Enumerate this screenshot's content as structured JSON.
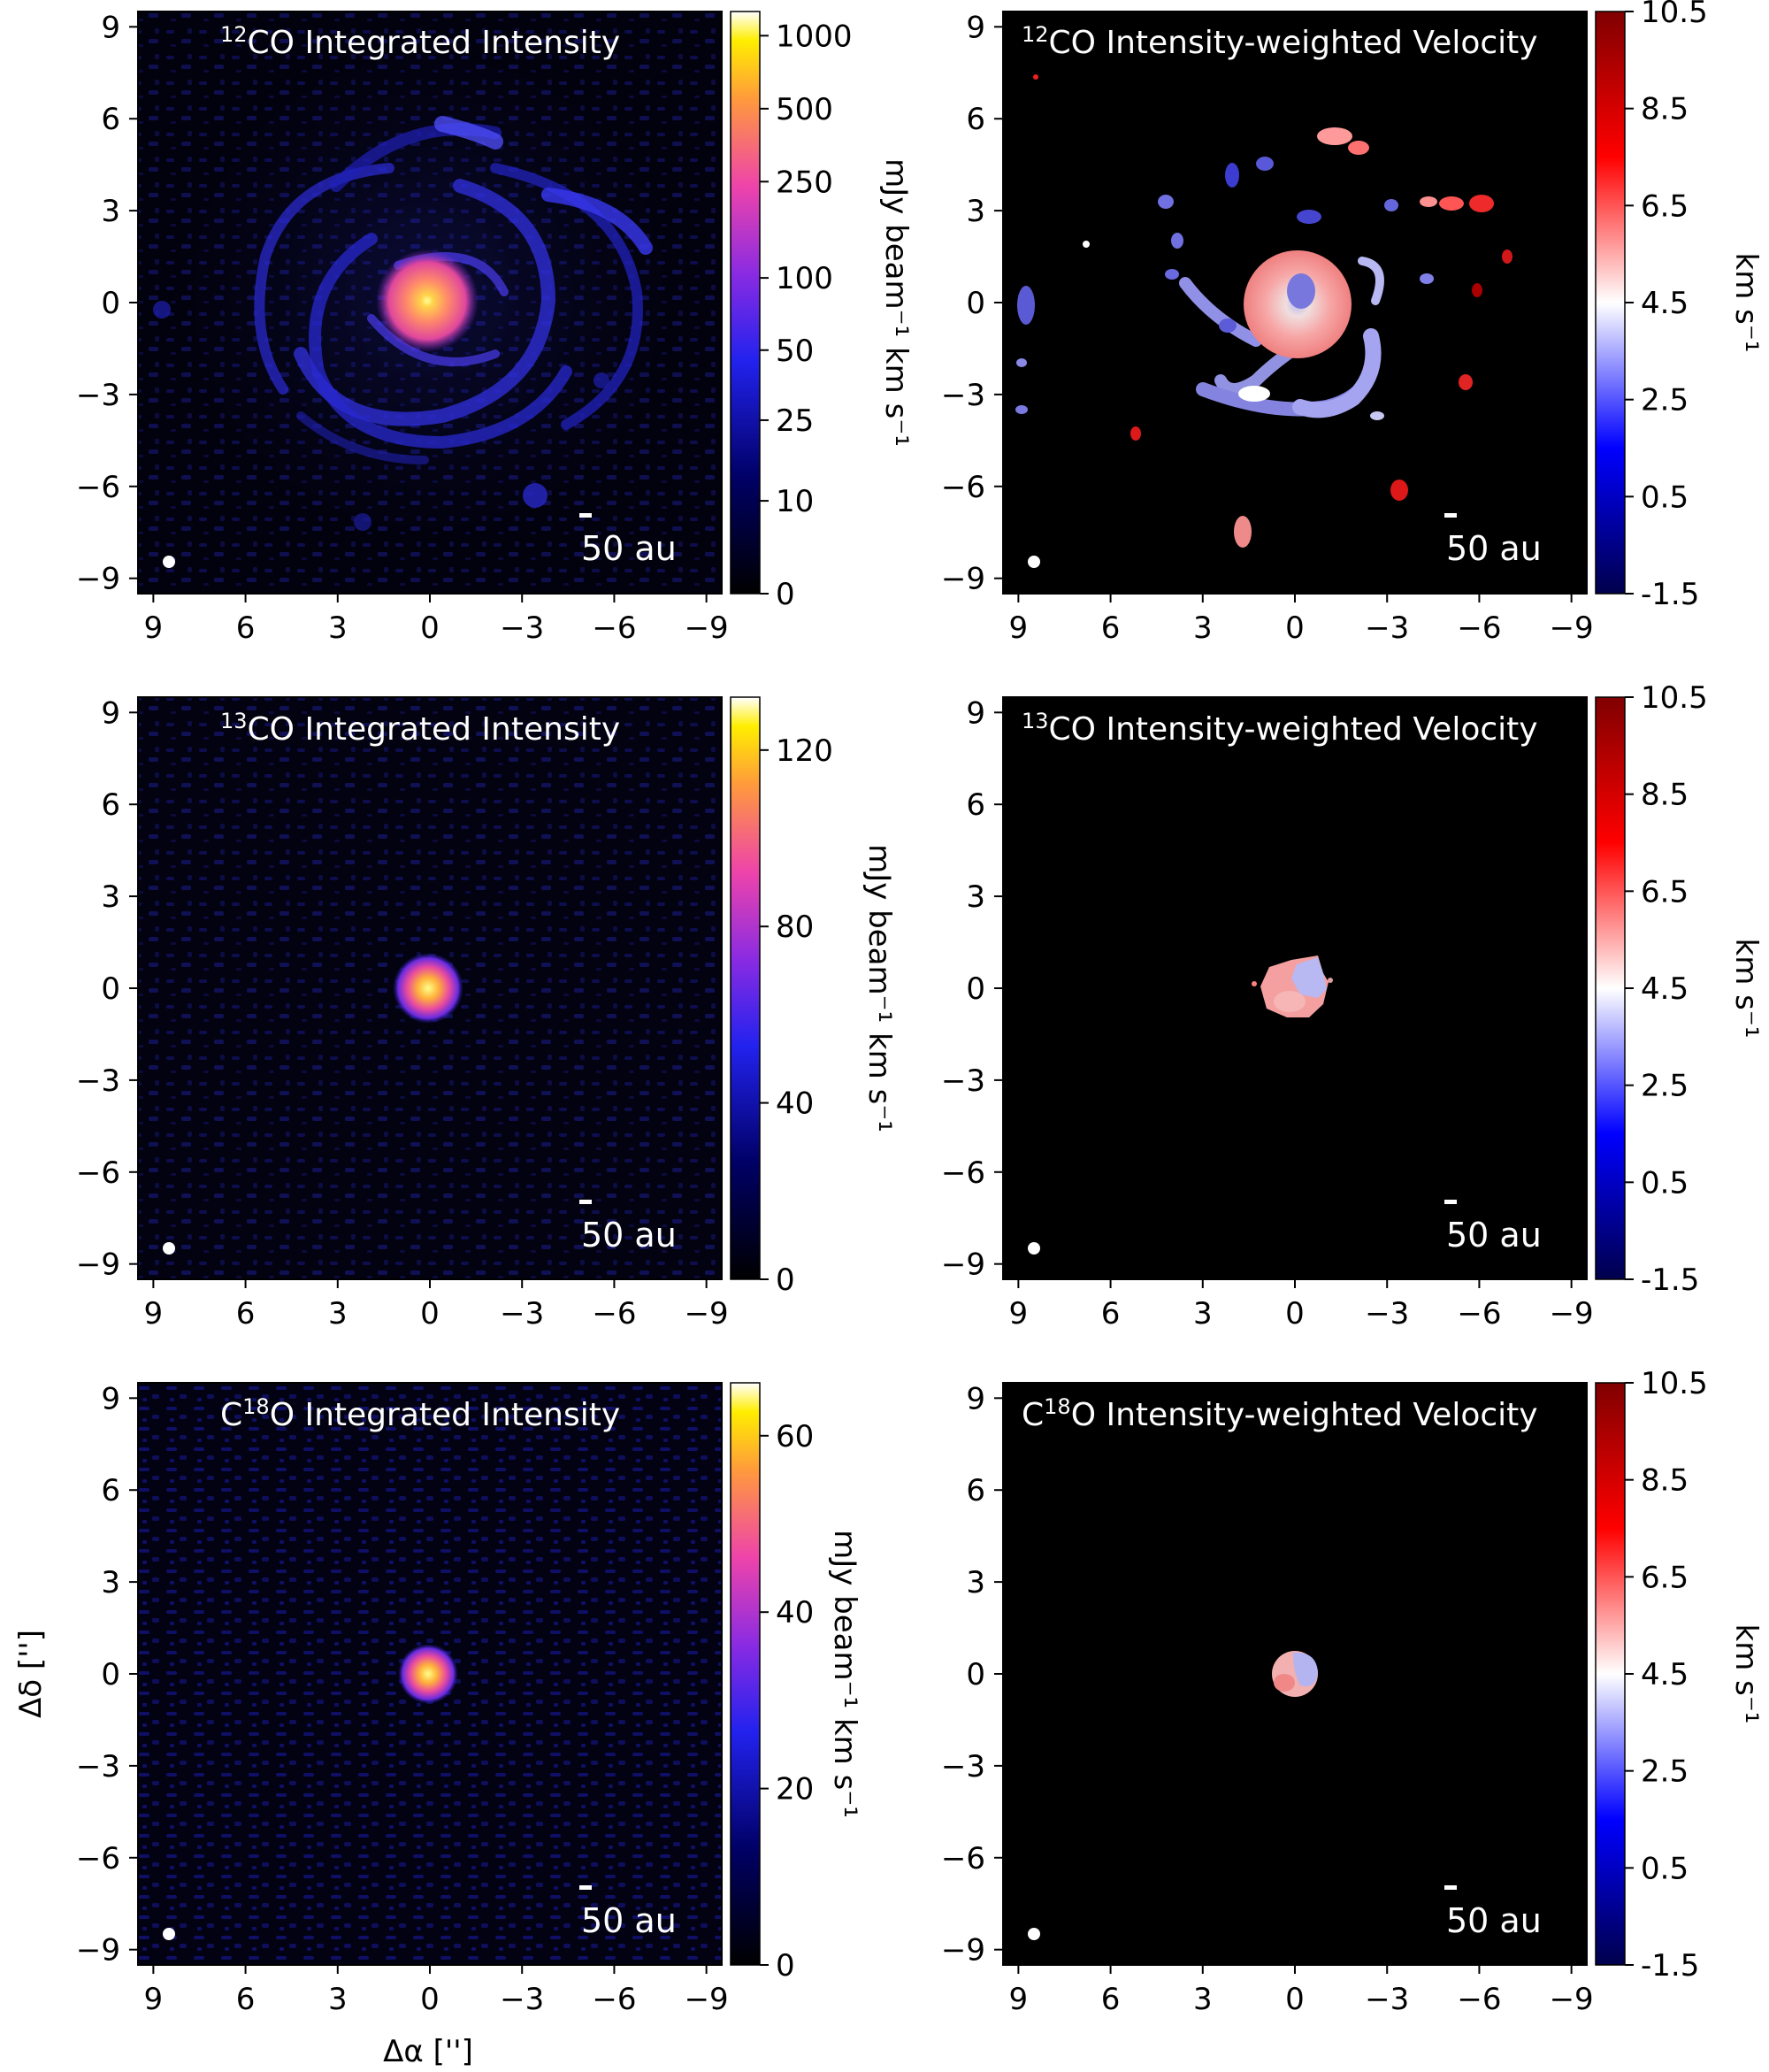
{
  "figure": {
    "x_axis_label": "Δα ['']",
    "y_axis_label": "Δδ ['']",
    "scale_bar_label": "50 au"
  },
  "chart_data": [
    {
      "type": "heatmap",
      "panel": "12co-intensity",
      "title": {
        "sup": "12",
        "rest": "CO Integrated Intensity"
      },
      "colormap": "gnuplot2",
      "x_ticks": [
        "9",
        "6",
        "3",
        "0",
        "−3",
        "−6",
        "−9"
      ],
      "y_ticks": [
        "9",
        "6",
        "3",
        "0",
        "−3",
        "−6",
        "−9"
      ],
      "x_range": [
        9.5,
        -9.5
      ],
      "y_range": [
        -9.5,
        9.5
      ],
      "colorbar": {
        "label": "mJy beam⁻¹ km s⁻¹",
        "scale": "asinh",
        "range": [
          0,
          1100
        ],
        "ticks": [
          "1000",
          "500",
          "250",
          "100",
          "50",
          "25",
          "10",
          "0"
        ]
      },
      "features": {
        "peak": [
          0,
          0
        ],
        "spiral_arms": 4,
        "core_radius_arcsec": 1.3
      }
    },
    {
      "type": "heatmap",
      "panel": "12co-velocity",
      "title": {
        "sup": "12",
        "rest": "CO Intensity-weighted Velocity"
      },
      "colormap": "seismic",
      "x_ticks": [
        "9",
        "6",
        "3",
        "0",
        "−3",
        "−6",
        "−9"
      ],
      "y_ticks": [
        "9",
        "6",
        "3",
        "0",
        "−3",
        "−6",
        "−9"
      ],
      "x_range": [
        9.5,
        -9.5
      ],
      "y_range": [
        -9.5,
        9.5
      ],
      "colorbar": {
        "label": "km s⁻¹",
        "range": [
          -1.5,
          10.5
        ],
        "ticks": [
          "10.5",
          "8.5",
          "6.5",
          "4.5",
          "2.5",
          "0.5",
          "-1.5"
        ]
      },
      "features": {
        "core_velocity": 6.0,
        "core_center_velocity": 3.2
      }
    },
    {
      "type": "heatmap",
      "panel": "13co-intensity",
      "title": {
        "sup": "13",
        "rest": "CO Integrated Intensity"
      },
      "colormap": "gnuplot2",
      "x_ticks": [
        "9",
        "6",
        "3",
        "0",
        "−3",
        "−6",
        "−9"
      ],
      "y_ticks": [
        "9",
        "6",
        "3",
        "0",
        "−3",
        "−6",
        "−9"
      ],
      "x_range": [
        9.5,
        -9.5
      ],
      "y_range": [
        -9.5,
        9.5
      ],
      "colorbar": {
        "label": "mJy beam⁻¹ km s⁻¹",
        "scale": "linear",
        "range": [
          0,
          132
        ],
        "ticks": [
          "120",
          "80",
          "40",
          "0"
        ]
      },
      "features": {
        "peak": [
          0,
          0
        ],
        "source_radius_arcsec": 0.6
      }
    },
    {
      "type": "heatmap",
      "panel": "13co-velocity",
      "title": {
        "sup": "13",
        "rest": "CO Intensity-weighted Velocity"
      },
      "colormap": "seismic",
      "x_ticks": [
        "9",
        "6",
        "3",
        "0",
        "−3",
        "−6",
        "−9"
      ],
      "y_ticks": [
        "9",
        "6",
        "3",
        "0",
        "−3",
        "−6",
        "−9"
      ],
      "x_range": [
        9.5,
        -9.5
      ],
      "y_range": [
        -9.5,
        9.5
      ],
      "colorbar": {
        "label": "km s⁻¹",
        "range": [
          -1.5,
          10.5
        ],
        "ticks": [
          "10.5",
          "8.5",
          "6.5",
          "4.5",
          "2.5",
          "0.5",
          "-1.5"
        ]
      },
      "features": {
        "red_side_velocity": 6.0,
        "blue_side_velocity": 3.2
      }
    },
    {
      "type": "heatmap",
      "panel": "c18o-intensity",
      "title": {
        "pre": "C",
        "sup": "18",
        "rest": "O Integrated Intensity"
      },
      "colormap": "gnuplot2",
      "x_ticks": [
        "9",
        "6",
        "3",
        "0",
        "−3",
        "−6",
        "−9"
      ],
      "y_ticks": [
        "9",
        "6",
        "3",
        "0",
        "−3",
        "−6",
        "−9"
      ],
      "x_range": [
        9.5,
        -9.5
      ],
      "y_range": [
        -9.5,
        9.5
      ],
      "colorbar": {
        "label": "mJy beam⁻¹ km s⁻¹",
        "scale": "linear",
        "range": [
          0,
          66
        ],
        "ticks": [
          "60",
          "40",
          "20",
          "0"
        ]
      },
      "features": {
        "peak": [
          0,
          0
        ],
        "source_radius_arcsec": 0.5
      }
    },
    {
      "type": "heatmap",
      "panel": "c18o-velocity",
      "title": {
        "pre": "C",
        "sup": "18",
        "rest": "O Intensity-weighted Velocity"
      },
      "colormap": "seismic",
      "x_ticks": [
        "9",
        "6",
        "3",
        "0",
        "−3",
        "−6",
        "−9"
      ],
      "y_ticks": [
        "9",
        "6",
        "3",
        "0",
        "−3",
        "−6",
        "−9"
      ],
      "x_range": [
        9.5,
        -9.5
      ],
      "y_range": [
        -9.5,
        9.5
      ],
      "colorbar": {
        "label": "km s⁻¹",
        "range": [
          -1.5,
          10.5
        ],
        "ticks": [
          "10.5",
          "8.5",
          "6.5",
          "4.5",
          "2.5",
          "0.5",
          "-1.5"
        ]
      },
      "features": {
        "red_side_velocity": 6.0,
        "blue_side_velocity": 3.0
      }
    }
  ]
}
